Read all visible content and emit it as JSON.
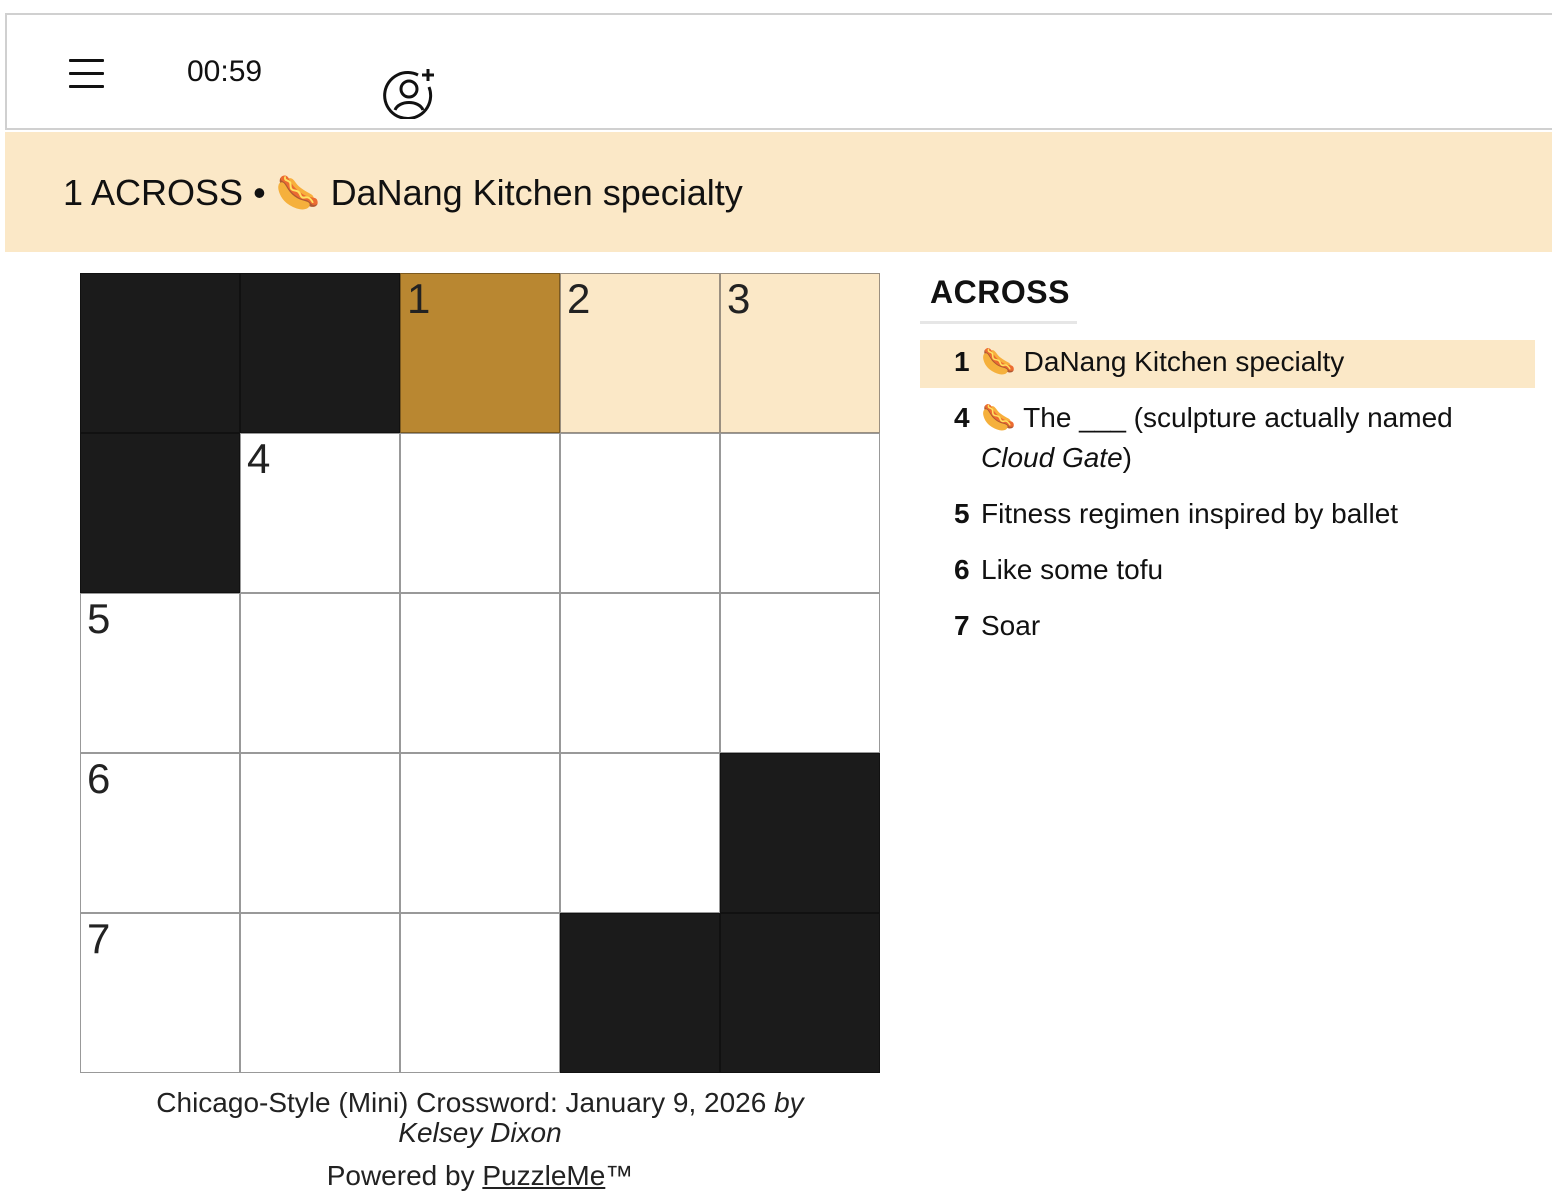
{
  "toolbar": {
    "menu_icon": "hamburger-menu-icon",
    "timer": "00:59",
    "invite_icon": "add-user-icon"
  },
  "clue_bar": {
    "label": "1 ACROSS",
    "separator": "•",
    "emoji": "🌭",
    "text": "DaNang Kitchen specialty"
  },
  "grid": {
    "rows": 5,
    "cols": 5,
    "cells": [
      {
        "r": 0,
        "c": 0,
        "type": "black"
      },
      {
        "r": 0,
        "c": 1,
        "type": "black"
      },
      {
        "r": 0,
        "c": 2,
        "type": "active",
        "num": "1"
      },
      {
        "r": 0,
        "c": 3,
        "type": "word",
        "num": "2"
      },
      {
        "r": 0,
        "c": 4,
        "type": "word",
        "num": "3"
      },
      {
        "r": 1,
        "c": 0,
        "type": "black"
      },
      {
        "r": 1,
        "c": 1,
        "type": "white",
        "num": "4"
      },
      {
        "r": 1,
        "c": 2,
        "type": "white"
      },
      {
        "r": 1,
        "c": 3,
        "type": "white"
      },
      {
        "r": 1,
        "c": 4,
        "type": "white"
      },
      {
        "r": 2,
        "c": 0,
        "type": "white",
        "num": "5"
      },
      {
        "r": 2,
        "c": 1,
        "type": "white"
      },
      {
        "r": 2,
        "c": 2,
        "type": "white"
      },
      {
        "r": 2,
        "c": 3,
        "type": "white"
      },
      {
        "r": 2,
        "c": 4,
        "type": "white"
      },
      {
        "r": 3,
        "c": 0,
        "type": "white",
        "num": "6"
      },
      {
        "r": 3,
        "c": 1,
        "type": "white"
      },
      {
        "r": 3,
        "c": 2,
        "type": "white"
      },
      {
        "r": 3,
        "c": 3,
        "type": "white"
      },
      {
        "r": 3,
        "c": 4,
        "type": "black"
      },
      {
        "r": 4,
        "c": 0,
        "type": "white",
        "num": "7"
      },
      {
        "r": 4,
        "c": 1,
        "type": "white"
      },
      {
        "r": 4,
        "c": 2,
        "type": "white"
      },
      {
        "r": 4,
        "c": 3,
        "type": "black"
      },
      {
        "r": 4,
        "c": 4,
        "type": "black"
      }
    ]
  },
  "clues": {
    "title": "ACROSS",
    "items": [
      {
        "num": "1",
        "emoji": "🌭",
        "text": "DaNang Kitchen specialty",
        "active": true
      },
      {
        "num": "4",
        "emoji": "🌭",
        "text": "The ___ (sculpture actually named ",
        "italic": "Cloud Gate",
        "after": ")"
      },
      {
        "num": "5",
        "text": "Fitness regimen inspired by ballet"
      },
      {
        "num": "6",
        "text": "Like some tofu"
      },
      {
        "num": "7",
        "text": "Soar"
      }
    ]
  },
  "footer": {
    "title": "Chicago-Style (Mini) Crossword: January 9, 2026",
    "by": "by",
    "author": "Kelsey Dixon",
    "powered_by": "Powered by",
    "brand": "PuzzleMe",
    "tm": "™"
  },
  "colors": {
    "highlight": "#fbe8c7",
    "active_cell": "#b98731",
    "black_cell": "#1b1b1b"
  }
}
